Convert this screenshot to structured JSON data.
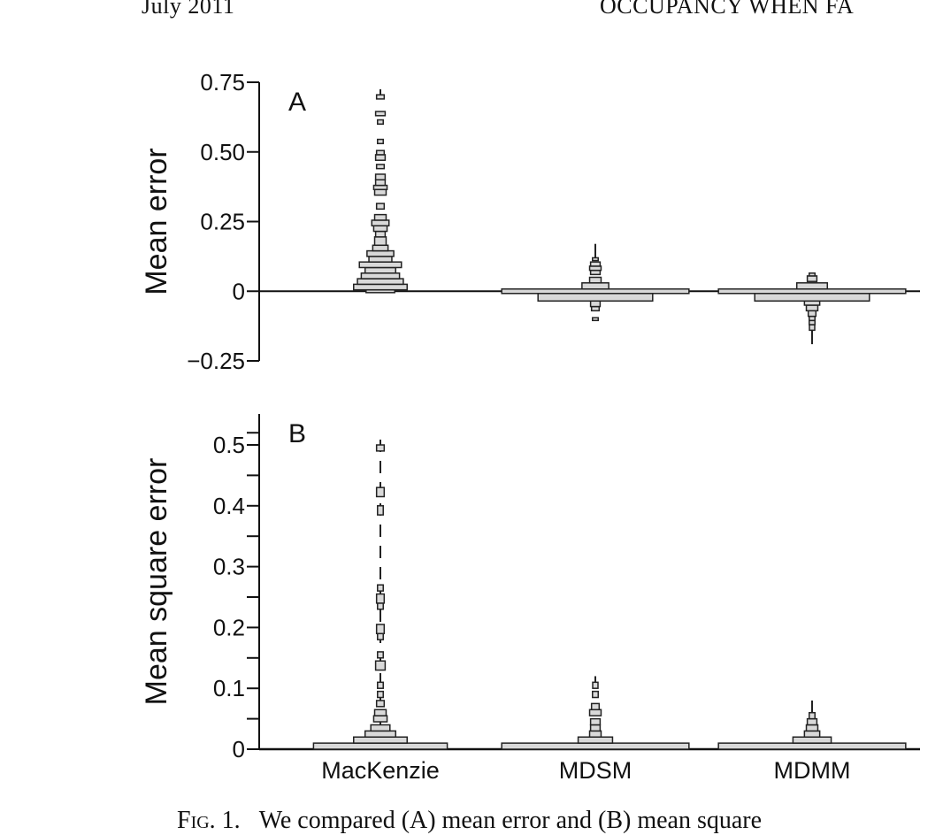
{
  "running_head": {
    "left": "July 2011",
    "right": "OCCUPANCY WHEN FA"
  },
  "caption": {
    "fig_label": "Fig. 1.",
    "text": "We compared (A) mean error and (B) mean square"
  },
  "colors": {
    "box_fill": "#d9d9d9",
    "box_stroke": "#222222",
    "axis": "#111111"
  },
  "chart_data": [
    {
      "type": "boxplot",
      "panel_label": "A",
      "ylabel": "Mean error",
      "ylim": [
        -0.25,
        0.75
      ],
      "yticks": [
        {
          "v": 0.75,
          "label": "0.75"
        },
        {
          "v": 0.5,
          "label": "0.50"
        },
        {
          "v": 0.25,
          "label": "0.25"
        },
        {
          "v": 0,
          "label": "0"
        },
        {
          "v": -0.25,
          "label": "−0.25"
        }
      ],
      "reference_line": 0,
      "categories": [
        "MacKenzie",
        "MDSM",
        "MDMM"
      ],
      "series": [
        {
          "name": "MacKenzie",
          "boxes": [
            {
              "lo": -0.005,
              "hi": 0.005,
              "w": 0.15
            },
            {
              "lo": 0.005,
              "hi": 0.025,
              "w": 0.28
            },
            {
              "lo": 0.025,
              "hi": 0.045,
              "w": 0.24
            },
            {
              "lo": 0.045,
              "hi": 0.065,
              "w": 0.2
            },
            {
              "lo": 0.065,
              "hi": 0.085,
              "w": 0.16
            },
            {
              "lo": 0.085,
              "hi": 0.105,
              "w": 0.22
            },
            {
              "lo": 0.105,
              "hi": 0.125,
              "w": 0.12
            },
            {
              "lo": 0.125,
              "hi": 0.145,
              "w": 0.14
            },
            {
              "lo": 0.145,
              "hi": 0.165,
              "w": 0.08
            },
            {
              "lo": 0.165,
              "hi": 0.195,
              "w": 0.06
            },
            {
              "lo": 0.195,
              "hi": 0.215,
              "w": 0.05
            },
            {
              "lo": 0.215,
              "hi": 0.235,
              "w": 0.07
            },
            {
              "lo": 0.235,
              "hi": 0.255,
              "w": 0.09
            },
            {
              "lo": 0.255,
              "hi": 0.275,
              "w": 0.06
            },
            {
              "lo": 0.295,
              "hi": 0.315,
              "w": 0.04
            },
            {
              "lo": 0.345,
              "hi": 0.365,
              "w": 0.06
            },
            {
              "lo": 0.365,
              "hi": 0.38,
              "w": 0.07
            },
            {
              "lo": 0.38,
              "hi": 0.4,
              "w": 0.05
            },
            {
              "lo": 0.4,
              "hi": 0.42,
              "w": 0.05
            },
            {
              "lo": 0.44,
              "hi": 0.455,
              "w": 0.04
            },
            {
              "lo": 0.47,
              "hi": 0.49,
              "w": 0.05
            },
            {
              "lo": 0.49,
              "hi": 0.505,
              "w": 0.04
            },
            {
              "lo": 0.53,
              "hi": 0.545,
              "w": 0.03
            },
            {
              "lo": 0.6,
              "hi": 0.615,
              "w": 0.03
            },
            {
              "lo": 0.63,
              "hi": 0.645,
              "w": 0.05
            },
            {
              "lo": 0.69,
              "hi": 0.705,
              "w": 0.04
            }
          ],
          "whisker": [
            0.7,
            0.725
          ]
        },
        {
          "name": "MDSM",
          "boxes": [
            {
              "lo": -0.105,
              "hi": -0.095,
              "w": 0.03
            },
            {
              "lo": -0.07,
              "hi": -0.055,
              "w": 0.04
            },
            {
              "lo": -0.055,
              "hi": -0.035,
              "w": 0.05
            },
            {
              "lo": -0.035,
              "hi": -0.008,
              "w": 0.6
            },
            {
              "lo": -0.008,
              "hi": 0.008,
              "w": 0.98
            },
            {
              "lo": 0.008,
              "hi": 0.03,
              "w": 0.14
            },
            {
              "lo": 0.03,
              "hi": 0.05,
              "w": 0.06
            },
            {
              "lo": 0.06,
              "hi": 0.075,
              "w": 0.05
            },
            {
              "lo": 0.075,
              "hi": 0.09,
              "w": 0.06
            },
            {
              "lo": 0.09,
              "hi": 0.105,
              "w": 0.05
            },
            {
              "lo": 0.11,
              "hi": 0.12,
              "w": 0.03
            }
          ],
          "whisker": [
            0.12,
            0.17
          ]
        },
        {
          "name": "MDMM",
          "boxes": [
            {
              "lo": -0.14,
              "hi": -0.12,
              "w": 0.02
            },
            {
              "lo": -0.12,
              "hi": -0.105,
              "w": 0.03
            },
            {
              "lo": -0.105,
              "hi": -0.09,
              "w": 0.03
            },
            {
              "lo": -0.09,
              "hi": -0.07,
              "w": 0.04
            },
            {
              "lo": -0.07,
              "hi": -0.05,
              "w": 0.06
            },
            {
              "lo": -0.05,
              "hi": -0.035,
              "w": 0.08
            },
            {
              "lo": -0.035,
              "hi": -0.008,
              "w": 0.6
            },
            {
              "lo": -0.008,
              "hi": 0.008,
              "w": 0.98
            },
            {
              "lo": 0.008,
              "hi": 0.03,
              "w": 0.16
            },
            {
              "lo": 0.035,
              "hi": 0.055,
              "w": 0.05
            },
            {
              "lo": 0.055,
              "hi": 0.065,
              "w": 0.03
            }
          ],
          "whisker": [
            -0.19,
            -0.14
          ]
        }
      ]
    },
    {
      "type": "boxplot",
      "panel_label": "B",
      "ylabel": "Mean square error",
      "ylim": [
        0,
        0.5
      ],
      "yticks": [
        {
          "v": 0.5,
          "label": "0.5"
        },
        {
          "v": 0.4,
          "label": "0.4"
        },
        {
          "v": 0.3,
          "label": "0.3"
        },
        {
          "v": 0.2,
          "label": "0.2"
        },
        {
          "v": 0.1,
          "label": "0.1"
        },
        {
          "v": 0,
          "label": "0"
        }
      ],
      "minor_yticks": [
        0.05,
        0.15,
        0.25,
        0.35,
        0.45,
        0.52
      ],
      "categories": [
        "MacKenzie",
        "MDSM",
        "MDMM"
      ],
      "series": [
        {
          "name": "MacKenzie",
          "boxes": [
            {
              "lo": 0.0,
              "hi": 0.01,
              "w": 0.7
            },
            {
              "lo": 0.01,
              "hi": 0.02,
              "w": 0.28
            },
            {
              "lo": 0.02,
              "hi": 0.03,
              "w": 0.16
            },
            {
              "lo": 0.03,
              "hi": 0.04,
              "w": 0.1
            },
            {
              "lo": 0.045,
              "hi": 0.055,
              "w": 0.07
            },
            {
              "lo": 0.055,
              "hi": 0.065,
              "w": 0.06
            },
            {
              "lo": 0.07,
              "hi": 0.08,
              "w": 0.04
            },
            {
              "lo": 0.085,
              "hi": 0.095,
              "w": 0.03
            },
            {
              "lo": 0.1,
              "hi": 0.11,
              "w": 0.03
            },
            {
              "lo": 0.13,
              "hi": 0.145,
              "w": 0.05
            },
            {
              "lo": 0.15,
              "hi": 0.16,
              "w": 0.03
            },
            {
              "lo": 0.18,
              "hi": 0.19,
              "w": 0.03
            },
            {
              "lo": 0.19,
              "hi": 0.205,
              "w": 0.04
            },
            {
              "lo": 0.23,
              "hi": 0.24,
              "w": 0.03
            },
            {
              "lo": 0.24,
              "hi": 0.255,
              "w": 0.04
            },
            {
              "lo": 0.26,
              "hi": 0.27,
              "w": 0.03
            },
            {
              "lo": 0.385,
              "hi": 0.4,
              "w": 0.03
            },
            {
              "lo": 0.415,
              "hi": 0.43,
              "w": 0.04
            },
            {
              "lo": 0.49,
              "hi": 0.5,
              "w": 0.04
            }
          ],
          "whisker": [
            0.0,
            0.52
          ]
        },
        {
          "name": "MDSM",
          "boxes": [
            {
              "lo": 0.0,
              "hi": 0.01,
              "w": 0.98
            },
            {
              "lo": 0.01,
              "hi": 0.02,
              "w": 0.18
            },
            {
              "lo": 0.02,
              "hi": 0.03,
              "w": 0.06
            },
            {
              "lo": 0.03,
              "hi": 0.04,
              "w": 0.05
            },
            {
              "lo": 0.04,
              "hi": 0.05,
              "w": 0.05
            },
            {
              "lo": 0.055,
              "hi": 0.065,
              "w": 0.06
            },
            {
              "lo": 0.065,
              "hi": 0.075,
              "w": 0.04
            },
            {
              "lo": 0.085,
              "hi": 0.095,
              "w": 0.03
            },
            {
              "lo": 0.1,
              "hi": 0.11,
              "w": 0.02
            }
          ],
          "whisker": [
            0.1,
            0.12
          ]
        },
        {
          "name": "MDMM",
          "boxes": [
            {
              "lo": 0.0,
              "hi": 0.01,
              "w": 0.98
            },
            {
              "lo": 0.01,
              "hi": 0.02,
              "w": 0.2
            },
            {
              "lo": 0.02,
              "hi": 0.03,
              "w": 0.08
            },
            {
              "lo": 0.03,
              "hi": 0.04,
              "w": 0.06
            },
            {
              "lo": 0.04,
              "hi": 0.05,
              "w": 0.05
            },
            {
              "lo": 0.05,
              "hi": 0.06,
              "w": 0.03
            }
          ],
          "whisker": [
            0.06,
            0.08
          ]
        }
      ]
    }
  ]
}
